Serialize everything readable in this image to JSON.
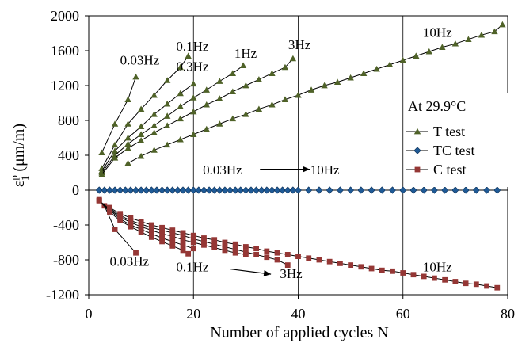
{
  "chart_data": {
    "type": "scatter",
    "title": "",
    "xlabel": "Number of applied cycles N",
    "ylabel": "ε",
    "ylabel_sup": "p",
    "ylabel_sub": "1",
    "ylabel_unit": " (μm/m)",
    "xlim": [
      0,
      80
    ],
    "ylim": [
      -1200,
      2000
    ],
    "xticks": [
      0,
      20,
      40,
      60,
      80
    ],
    "yticks": [
      -1200,
      -800,
      -400,
      0,
      400,
      800,
      1200,
      1600,
      2000
    ],
    "grid": "vertical",
    "legend_title": "At 29.9°C",
    "legend": [
      {
        "label": "T test",
        "marker": "triangle",
        "color": "#4f6228"
      },
      {
        "label": "TC test",
        "marker": "diamond",
        "color": "#1f5a96"
      },
      {
        "label": "C test",
        "marker": "square",
        "color": "#953735"
      }
    ],
    "annotations": [
      {
        "text": "0.03Hz",
        "x": 6,
        "y": 1440
      },
      {
        "text": "0.1Hz",
        "x": 16.7,
        "y": 1600
      },
      {
        "text": "0.3Hz",
        "x": 16.7,
        "y": 1370
      },
      {
        "text": "1Hz",
        "x": 27.8,
        "y": 1520
      },
      {
        "text": "3Hz",
        "x": 38.1,
        "y": 1620
      },
      {
        "text": "10Hz",
        "x": 63.8,
        "y": 1760
      },
      {
        "text": "0.03Hz",
        "x": 21.8,
        "y": 180
      },
      {
        "text": "10Hz",
        "x": 42.3,
        "y": 180
      },
      {
        "text": "0.03Hz",
        "x": 4,
        "y": -870
      },
      {
        "text": "0.1Hz",
        "x": 16.7,
        "y": -930
      },
      {
        "text": "3Hz",
        "x": 36.5,
        "y": -1010
      },
      {
        "text": "10Hz",
        "x": 63.8,
        "y": -930
      }
    ],
    "arrows": [
      {
        "from": [
          32.7,
          240
        ],
        "to": [
          42.2,
          240
        ]
      },
      {
        "from": [
          27,
          -905
        ],
        "to": [
          34.8,
          -965
        ]
      }
    ],
    "series": [
      {
        "group": "T test",
        "label": "0.03Hz",
        "x": [
          2.5,
          5,
          7.5,
          9
        ],
        "y": [
          430,
          760,
          1040,
          1300
        ]
      },
      {
        "group": "T test",
        "label": "0.1Hz",
        "x": [
          2.5,
          5,
          7.5,
          10,
          12.5,
          15,
          17.5,
          19
        ],
        "y": [
          250,
          520,
          760,
          930,
          1090,
          1260,
          1410,
          1540
        ]
      },
      {
        "group": "T test",
        "label": "0.3Hz",
        "x": [
          2.5,
          5,
          7.5,
          10,
          12.5,
          15,
          17.5,
          20
        ],
        "y": [
          220,
          450,
          600,
          730,
          870,
          990,
          1110,
          1220
        ]
      },
      {
        "group": "T test",
        "label": "1Hz",
        "x": [
          2.5,
          5,
          7.5,
          10,
          12.5,
          15,
          17.5,
          20,
          22.5,
          25,
          27.5,
          29.5
        ],
        "y": [
          200,
          400,
          530,
          640,
          740,
          850,
          960,
          1060,
          1150,
          1250,
          1340,
          1430
        ]
      },
      {
        "group": "T test",
        "label": "3Hz",
        "x": [
          2.5,
          5,
          7.5,
          10,
          12.5,
          15,
          17.5,
          20,
          22.5,
          25,
          27.5,
          30,
          32.5,
          35,
          37.5,
          39
        ],
        "y": [
          180,
          370,
          480,
          570,
          660,
          740,
          820,
          900,
          980,
          1050,
          1130,
          1200,
          1270,
          1340,
          1410,
          1510
        ]
      },
      {
        "group": "T test",
        "label": "10Hz",
        "x": [
          7.5,
          10,
          12.5,
          15,
          17.5,
          20,
          22.5,
          25,
          27.5,
          30,
          32.5,
          35,
          37.5,
          40,
          42.5,
          45,
          47.5,
          50,
          52.5,
          55,
          57.5,
          60,
          62.5,
          65,
          67.5,
          70,
          72.5,
          75,
          77.5,
          79
        ],
        "y": [
          310,
          390,
          460,
          520,
          580,
          640,
          700,
          760,
          820,
          870,
          930,
          980,
          1040,
          1090,
          1150,
          1200,
          1240,
          1290,
          1340,
          1390,
          1440,
          1490,
          1540,
          1590,
          1640,
          1680,
          1730,
          1780,
          1820,
          1900
        ]
      },
      {
        "group": "TC test",
        "label": "0.03Hz-10Hz",
        "x": [
          2,
          3,
          4,
          5,
          6,
          7,
          8,
          9,
          10,
          11,
          12,
          13,
          14,
          15,
          16,
          17,
          18,
          19,
          20,
          21,
          22,
          23,
          24,
          25,
          26,
          27,
          28,
          29,
          30,
          31,
          32,
          33,
          34,
          35,
          36,
          37,
          38,
          39,
          40,
          42,
          44,
          46,
          48,
          50,
          52,
          54,
          56,
          58,
          60,
          62,
          64,
          66,
          68,
          70,
          72,
          74,
          76,
          78
        ],
        "y": [
          0,
          0,
          0,
          0,
          0,
          0,
          0,
          0,
          0,
          0,
          0,
          0,
          0,
          0,
          0,
          0,
          0,
          0,
          0,
          0,
          0,
          0,
          0,
          0,
          0,
          0,
          0,
          0,
          0,
          0,
          0,
          0,
          0,
          0,
          0,
          0,
          0,
          0,
          0,
          0,
          0,
          0,
          0,
          0,
          0,
          0,
          0,
          0,
          0,
          0,
          0,
          0,
          0,
          0,
          0,
          0,
          0,
          0
        ]
      },
      {
        "group": "C test",
        "label": "0.03Hz",
        "x": [
          2,
          3,
          5,
          9
        ],
        "y": [
          -110,
          -180,
          -450,
          -720
        ]
      },
      {
        "group": "C test",
        "label": "0.1Hz",
        "x": [
          2,
          4,
          6,
          8,
          10,
          12,
          14,
          16,
          18,
          19
        ],
        "y": [
          -120,
          -250,
          -350,
          -420,
          -480,
          -540,
          -590,
          -640,
          -690,
          -730
        ]
      },
      {
        "group": "C test",
        "label": "0.3Hz",
        "x": [
          2,
          4,
          6,
          8,
          10,
          12,
          14,
          16,
          18,
          20
        ],
        "y": [
          -120,
          -230,
          -330,
          -400,
          -450,
          -500,
          -550,
          -590,
          -630,
          -670
        ]
      },
      {
        "group": "C test",
        "label": "1Hz",
        "x": [
          2,
          4,
          6,
          8,
          10,
          12,
          14,
          16,
          18,
          20,
          22,
          24,
          26,
          28,
          30
        ],
        "y": [
          -120,
          -220,
          -310,
          -370,
          -420,
          -460,
          -500,
          -530,
          -570,
          -600,
          -630,
          -660,
          -690,
          -720,
          -740
        ]
      },
      {
        "group": "C test",
        "label": "3Hz",
        "x": [
          4,
          6,
          8,
          10,
          12,
          14,
          16,
          18,
          20,
          22,
          24,
          26,
          28,
          30,
          32,
          34,
          36,
          38
        ],
        "y": [
          -210,
          -290,
          -350,
          -390,
          -430,
          -460,
          -490,
          -520,
          -560,
          -590,
          -620,
          -650,
          -680,
          -710,
          -740,
          -770,
          -800,
          -860
        ]
      },
      {
        "group": "C test",
        "label": "10Hz",
        "x": [
          4,
          6,
          8,
          10,
          12,
          14,
          16,
          18,
          20,
          22,
          24,
          26,
          28,
          30,
          32,
          34,
          36,
          38,
          40,
          42,
          44,
          46,
          48,
          50,
          52,
          54,
          56,
          58,
          60,
          62,
          64,
          66,
          68,
          70,
          72,
          74,
          76,
          78
        ],
        "y": [
          -200,
          -270,
          -320,
          -360,
          -400,
          -430,
          -460,
          -490,
          -520,
          -550,
          -570,
          -600,
          -620,
          -650,
          -670,
          -700,
          -720,
          -740,
          -760,
          -780,
          -800,
          -820,
          -840,
          -860,
          -880,
          -900,
          -920,
          -930,
          -950,
          -970,
          -990,
          -1010,
          -1030,
          -1050,
          -1070,
          -1080,
          -1100,
          -1120
        ]
      }
    ]
  }
}
